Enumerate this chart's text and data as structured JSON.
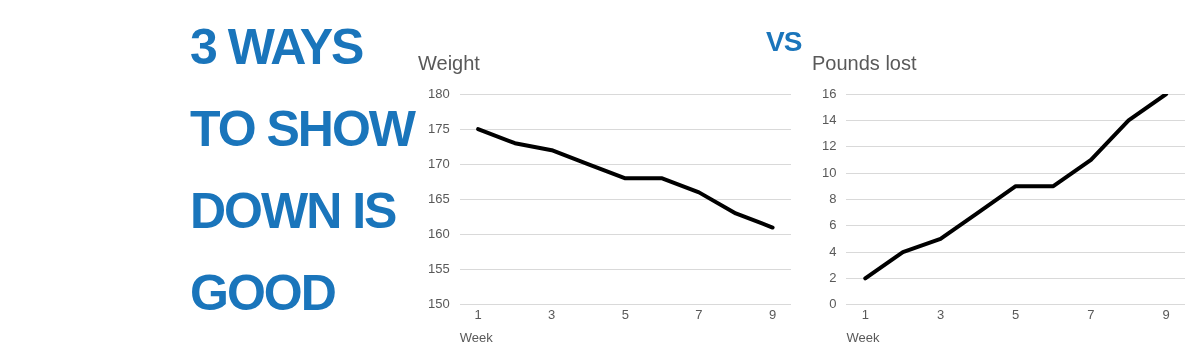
{
  "chart_data": [
    {
      "type": "other",
      "title": "3 WAYS TO SHOW DOWN IS GOOD",
      "annotations": [
        "VS"
      ]
    },
    {
      "type": "line",
      "title": "Weight",
      "xlabel": "Week",
      "x": [
        1,
        2,
        3,
        4,
        5,
        6,
        7,
        8,
        9
      ],
      "xlim": [
        0.5,
        9.5
      ],
      "xticks": [
        1,
        3,
        5,
        7,
        9
      ],
      "ylim": [
        150,
        180
      ],
      "yticks": [
        150,
        155,
        160,
        165,
        170,
        175,
        180
      ],
      "grid": "y",
      "marker": "none",
      "line_style": "solid",
      "series": [
        {
          "color": "#000000",
          "values": [
            175,
            173,
            172,
            170,
            168,
            168,
            166,
            163,
            161
          ]
        }
      ]
    },
    {
      "type": "line",
      "title": "Pounds lost",
      "xlabel": "Week",
      "x": [
        1,
        2,
        3,
        4,
        5,
        6,
        7,
        8,
        9
      ],
      "xlim": [
        0.5,
        9.5
      ],
      "xticks": [
        1,
        3,
        5,
        7,
        9
      ],
      "ylim": [
        0,
        16
      ],
      "yticks": [
        0,
        2,
        4,
        6,
        8,
        10,
        12,
        14,
        16
      ],
      "grid": "y",
      "marker": "none",
      "line_style": "solid",
      "series": [
        {
          "color": "#000000",
          "values": [
            2,
            4,
            5,
            7,
            9,
            9,
            11,
            14,
            16
          ]
        }
      ]
    }
  ]
}
